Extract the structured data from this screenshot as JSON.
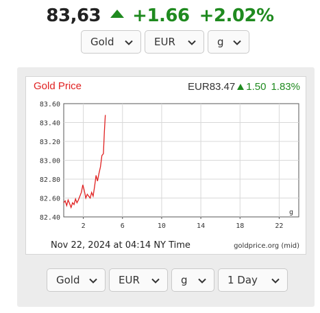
{
  "header": {
    "price": "83,63",
    "change_abs": "+1.66",
    "change_pct": "+2.02%"
  },
  "top_selects": {
    "metal": "Gold",
    "currency": "EUR",
    "unit": "g"
  },
  "chart": {
    "title": "Gold Price",
    "price": "EUR83.47",
    "change_abs": "1.50",
    "change_pct": "1.83%",
    "unit_label": "g",
    "date_time": "Nov 22, 2024 at 04:14 NY Time",
    "source": "goldprice.org (mid)"
  },
  "bottom_selects": {
    "metal": "Gold",
    "currency": "EUR",
    "unit": "g",
    "range": "1 Day"
  },
  "colors": {
    "up": "#1f8a1f",
    "line": "#e02020",
    "title": "#e02020"
  },
  "chart_data": {
    "type": "line",
    "title": "Gold Price",
    "xlim": [
      0,
      24
    ],
    "ylim": [
      82.4,
      83.6
    ],
    "x_ticks": [
      2,
      6,
      10,
      14,
      18,
      22
    ],
    "x_tick_labels": [
      "2",
      "6",
      "10",
      "14",
      "18",
      "22"
    ],
    "y_ticks": [
      82.4,
      82.6,
      82.8,
      83.0,
      83.2,
      83.4,
      83.6
    ],
    "y_tick_labels": [
      "82.40",
      "82.60",
      "82.80",
      "83.00",
      "83.20",
      "83.40",
      "83.60"
    ],
    "grid": true,
    "series": [
      {
        "x": [
          0,
          0.15,
          0.3,
          0.45,
          0.6,
          0.75,
          0.9,
          1.05,
          1.2,
          1.35,
          1.5,
          1.65,
          1.8,
          1.95,
          2.1,
          2.25,
          2.4,
          2.55,
          2.7,
          2.85,
          3.0,
          3.15,
          3.3,
          3.45,
          3.6,
          3.75,
          3.9,
          4.05,
          4.15,
          4.25
        ],
        "y": [
          82.55,
          82.57,
          82.52,
          82.58,
          82.54,
          82.5,
          82.55,
          82.53,
          82.59,
          82.55,
          82.58,
          82.62,
          82.66,
          82.74,
          82.68,
          82.6,
          82.64,
          82.62,
          82.6,
          82.66,
          82.62,
          82.72,
          82.84,
          82.78,
          82.86,
          82.93,
          83.05,
          83.07,
          83.3,
          83.48
        ]
      }
    ]
  }
}
